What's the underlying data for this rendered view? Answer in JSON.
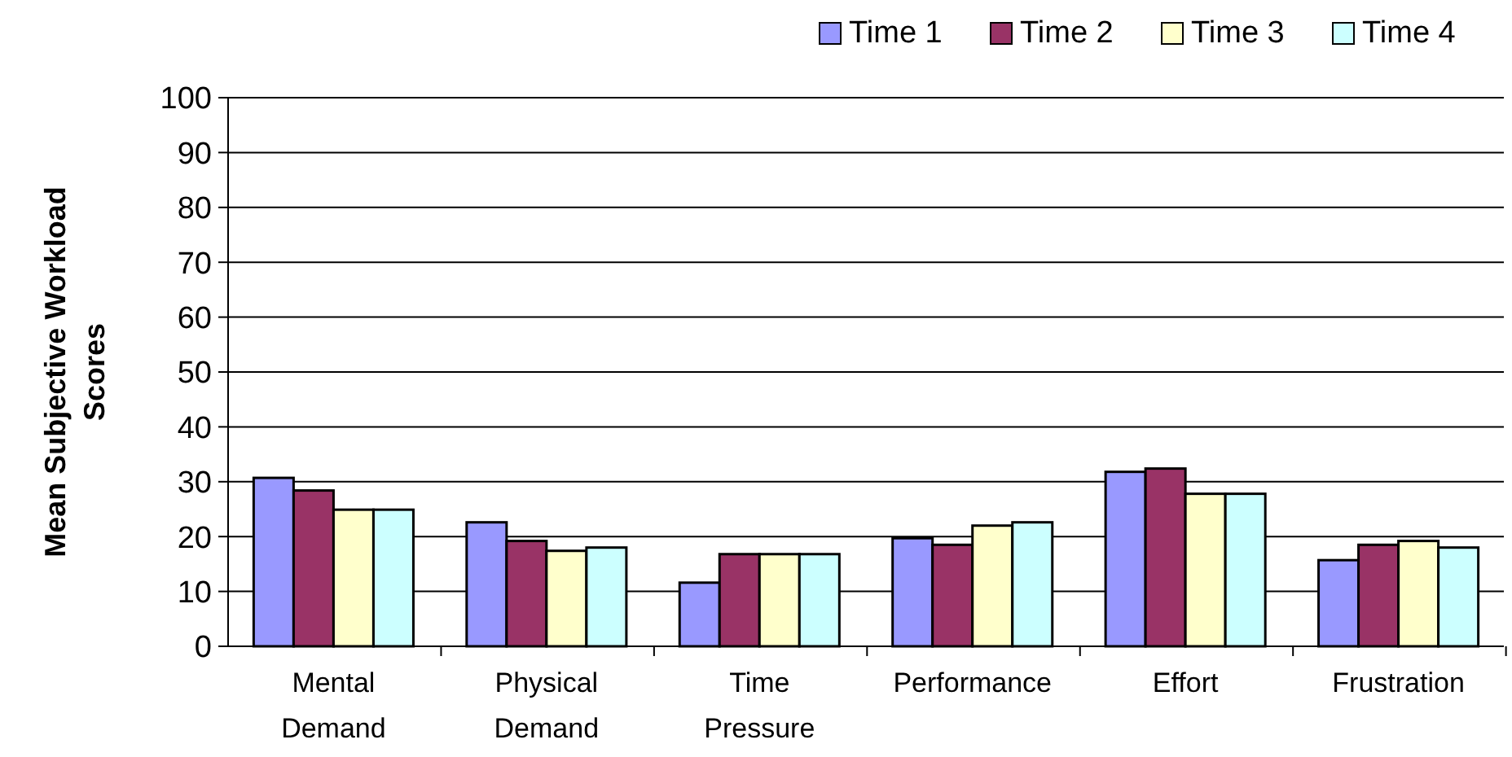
{
  "chart_data": {
    "type": "bar",
    "ylabel": "Mean Subjective Workload Scores",
    "categories": [
      "Mental Demand",
      "Physical Demand",
      "Time Pressure",
      "Performance",
      "Effort",
      "Frustration"
    ],
    "series": [
      {
        "name": "Time 1",
        "color": "#9999ff",
        "values": [
          30.7,
          22.6,
          11.6,
          19.7,
          31.8,
          15.7
        ]
      },
      {
        "name": "Time 2",
        "color": "#993366",
        "values": [
          28.4,
          19.2,
          16.8,
          18.5,
          32.4,
          18.5
        ]
      },
      {
        "name": "Time 3",
        "color": "#ffffcc",
        "values": [
          24.9,
          17.4,
          16.8,
          22,
          27.8,
          19.2
        ]
      },
      {
        "name": "Time 4",
        "color": "#ccffff",
        "values": [
          24.9,
          18,
          16.8,
          22.6,
          27.8,
          18
        ]
      }
    ],
    "ylim": [
      0,
      100
    ],
    "yticks": [
      0,
      10,
      20,
      30,
      40,
      50,
      60,
      70,
      80,
      90,
      100
    ],
    "grid": "y",
    "legend": "top right"
  }
}
